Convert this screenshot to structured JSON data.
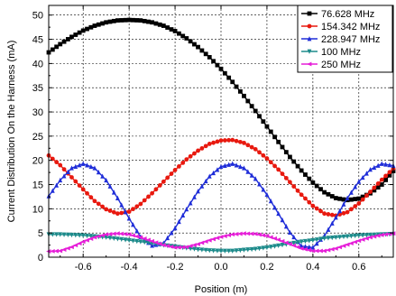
{
  "chart_data": {
    "type": "line",
    "title": "",
    "xlabel": "Position (m)",
    "ylabel": "Current Distribution On the Harness (mA)",
    "xlim": [
      -0.75,
      0.75
    ],
    "ylim": [
      0,
      52
    ],
    "xticks": [
      -0.6,
      -0.4,
      -0.2,
      0.0,
      0.2,
      0.4,
      0.6
    ],
    "xtick_labels": [
      "-0.6",
      "-0.4",
      "-0.2",
      "0.0",
      "0.2",
      "0.4",
      "0.6"
    ],
    "yticks": [
      0,
      5,
      10,
      15,
      20,
      25,
      30,
      35,
      40,
      45,
      50
    ],
    "ytick_labels": [
      "0",
      "5",
      "10",
      "15",
      "20",
      "25",
      "30",
      "35",
      "40",
      "45",
      "50"
    ],
    "grid": true,
    "legend_position": "top-right",
    "series": [
      {
        "name": "76.628 MHz",
        "color": "#000000",
        "marker": "square",
        "x": [
          -0.75,
          -0.7,
          -0.65,
          -0.6,
          -0.55,
          -0.5,
          -0.45,
          -0.4,
          -0.35,
          -0.3,
          -0.25,
          -0.2,
          -0.15,
          -0.1,
          -0.05,
          0.0,
          0.05,
          0.1,
          0.15,
          0.2,
          0.25,
          0.3,
          0.35,
          0.4,
          0.45,
          0.5,
          0.55,
          0.6,
          0.65,
          0.7,
          0.75
        ],
        "y": [
          42.3,
          44.0,
          45.5,
          46.8,
          47.8,
          48.5,
          48.9,
          49.0,
          48.9,
          48.5,
          47.8,
          46.7,
          45.2,
          43.4,
          41.3,
          38.9,
          36.2,
          33.3,
          30.2,
          27.0,
          23.8,
          20.7,
          17.9,
          15.4,
          13.4,
          12.2,
          11.8,
          12.1,
          13.2,
          15.0,
          17.8
        ]
      },
      {
        "name": "154.342 MHz",
        "color": "#e8190f",
        "marker": "circle",
        "x": [
          -0.75,
          -0.7,
          -0.65,
          -0.6,
          -0.55,
          -0.5,
          -0.45,
          -0.4,
          -0.35,
          -0.3,
          -0.25,
          -0.2,
          -0.15,
          -0.1,
          -0.05,
          0.0,
          0.05,
          0.1,
          0.15,
          0.2,
          0.25,
          0.3,
          0.35,
          0.4,
          0.45,
          0.5,
          0.55,
          0.6,
          0.65,
          0.7,
          0.75
        ],
        "y": [
          21.0,
          19.0,
          16.5,
          14.0,
          11.6,
          9.9,
          9.0,
          9.4,
          11.0,
          13.2,
          15.6,
          18.0,
          20.2,
          22.0,
          23.4,
          24.1,
          24.2,
          23.6,
          22.3,
          20.4,
          18.1,
          15.5,
          12.9,
          10.6,
          9.0,
          8.6,
          9.3,
          11.1,
          13.5,
          16.0,
          18.3
        ]
      },
      {
        "name": "228.947 MHz",
        "color": "#1f2dd8",
        "marker": "triangle-up",
        "x": [
          -0.75,
          -0.7,
          -0.65,
          -0.6,
          -0.55,
          -0.5,
          -0.45,
          -0.4,
          -0.35,
          -0.3,
          -0.25,
          -0.2,
          -0.15,
          -0.1,
          -0.05,
          0.0,
          0.05,
          0.1,
          0.15,
          0.2,
          0.25,
          0.3,
          0.35,
          0.4,
          0.45,
          0.5,
          0.55,
          0.6,
          0.65,
          0.7,
          0.75
        ],
        "y": [
          12.6,
          15.9,
          18.4,
          19.3,
          18.4,
          15.9,
          12.2,
          8.0,
          4.2,
          2.4,
          2.9,
          6.0,
          9.9,
          13.6,
          16.7,
          18.7,
          19.3,
          18.4,
          16.2,
          12.9,
          9.0,
          5.1,
          2.3,
          2.0,
          4.4,
          8.2,
          12.2,
          15.6,
          18.1,
          19.3,
          18.9
        ]
      },
      {
        "name": "100 MHz",
        "color": "#1d8b8b",
        "marker": "triangle-down",
        "x": [
          -0.75,
          -0.7,
          -0.65,
          -0.6,
          -0.55,
          -0.5,
          -0.45,
          -0.4,
          -0.35,
          -0.3,
          -0.25,
          -0.2,
          -0.15,
          -0.1,
          -0.05,
          0.0,
          0.05,
          0.1,
          0.15,
          0.2,
          0.25,
          0.3,
          0.35,
          0.4,
          0.45,
          0.5,
          0.55,
          0.6,
          0.65,
          0.7,
          0.75
        ],
        "y": [
          4.7,
          4.7,
          4.6,
          4.5,
          4.3,
          4.1,
          3.8,
          3.5,
          3.2,
          2.9,
          2.5,
          2.2,
          1.9,
          1.6,
          1.4,
          1.3,
          1.3,
          1.5,
          1.7,
          2.0,
          2.4,
          2.8,
          3.2,
          3.5,
          3.9,
          4.1,
          4.3,
          4.5,
          4.6,
          4.7,
          4.8
        ]
      },
      {
        "name": "250 MHz",
        "color": "#e61fd8",
        "marker": "triangle-left",
        "x": [
          -0.75,
          -0.7,
          -0.65,
          -0.6,
          -0.55,
          -0.5,
          -0.45,
          -0.4,
          -0.35,
          -0.3,
          -0.25,
          -0.2,
          -0.15,
          -0.1,
          -0.05,
          0.0,
          0.05,
          0.1,
          0.15,
          0.2,
          0.25,
          0.3,
          0.35,
          0.4,
          0.45,
          0.5,
          0.55,
          0.6,
          0.65,
          0.7,
          0.75
        ],
        "y": [
          1.2,
          1.3,
          2.1,
          3.2,
          4.1,
          4.7,
          4.9,
          4.7,
          4.1,
          3.3,
          2.5,
          2.0,
          2.1,
          2.7,
          3.5,
          4.2,
          4.7,
          4.9,
          4.8,
          4.4,
          3.6,
          2.7,
          1.8,
          1.3,
          1.3,
          1.8,
          2.6,
          3.4,
          4.1,
          4.6,
          4.9
        ]
      }
    ]
  }
}
